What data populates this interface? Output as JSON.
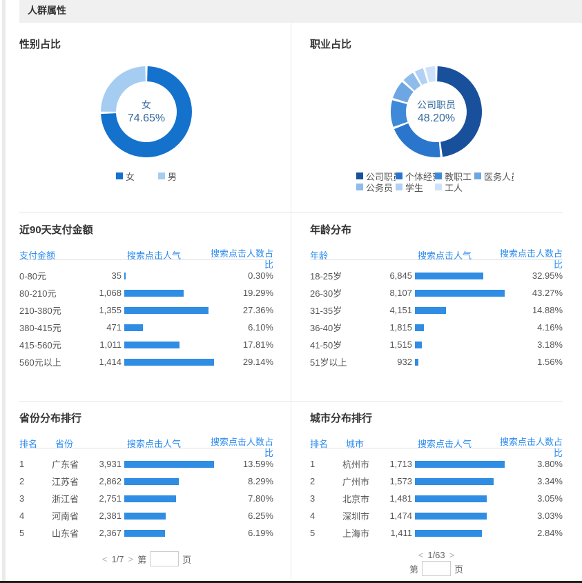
{
  "page": {
    "title": "人群属性"
  },
  "colors": {
    "accent_blue": "#2d8cf0",
    "bar_blue": "#2f8de3",
    "donut_center_text": "#33699f",
    "title_text": "#333333",
    "body_text": "#555555",
    "separator_band": "#f0f0f0",
    "divider": "#e7e7e7",
    "bottom_edge": "#1f1f1f"
  },
  "panels": {
    "gender": {
      "title": "性别占比"
    },
    "occupation": {
      "title": "职业占比"
    },
    "payment": {
      "title": "近90天支付金额"
    },
    "age": {
      "title": "年龄分布"
    },
    "province": {
      "title": "省份分布排行",
      "pagination_current": "1/7"
    },
    "city": {
      "title": "城市分布排行",
      "pagination_current": "1/63"
    }
  },
  "pagination": {
    "prev": "<",
    "next": ">",
    "page_prefix": "第",
    "page_suffix": "页",
    "input_value": ""
  },
  "chart_data": [
    {
      "id": "gender",
      "type": "pie",
      "subtype": "donut",
      "title": "性别占比",
      "labels": [
        "女",
        "男"
      ],
      "values": [
        74.65,
        25.35
      ],
      "unit": "%",
      "colors": [
        "#1472cd",
        "#a5cdf2"
      ],
      "center_label": [
        "女",
        "74.65%"
      ],
      "legend_position": "bottom"
    },
    {
      "id": "occupation",
      "type": "pie",
      "subtype": "donut",
      "title": "职业占比",
      "labels": [
        "公司职员",
        "个体经营",
        "教职工",
        "医务人员",
        "公务员",
        "学生",
        "工人"
      ],
      "values": [
        48.2,
        21.0,
        10.3,
        7.3,
        5.0,
        3.9,
        4.3
      ],
      "unit": "%",
      "colors": [
        "#19509c",
        "#2a76cd",
        "#3f8ad8",
        "#6ea6e3",
        "#8fbceb",
        "#b0d1f3",
        "#cde2f9"
      ],
      "center_label": [
        "公司职员",
        "48.20%"
      ],
      "legend_position": "bottom"
    },
    {
      "id": "payment",
      "type": "table",
      "title": "近90天支付金额",
      "columns": [
        "支付金额",
        "搜索点击人气",
        "搜索点击人数占比"
      ],
      "rows": [
        {
          "label": "0-80元",
          "value": "35",
          "pct": "0.30%",
          "pct_num": 0.3
        },
        {
          "label": "80-210元",
          "value": "1,068",
          "pct": "19.29%",
          "pct_num": 19.29
        },
        {
          "label": "210-380元",
          "value": "1,355",
          "pct": "27.36%",
          "pct_num": 27.36
        },
        {
          "label": "380-415元",
          "value": "471",
          "pct": "6.10%",
          "pct_num": 6.1
        },
        {
          "label": "415-560元",
          "value": "1,011",
          "pct": "17.81%",
          "pct_num": 17.81
        },
        {
          "label": "560元以上",
          "value": "1,414",
          "pct": "29.14%",
          "pct_num": 29.14
        }
      ]
    },
    {
      "id": "age",
      "type": "table",
      "title": "年龄分布",
      "columns": [
        "年龄",
        "搜索点击人气",
        "搜索点击人数占比"
      ],
      "rows": [
        {
          "label": "18-25岁",
          "value": "6,845",
          "pct": "32.95%",
          "pct_num": 32.95
        },
        {
          "label": "26-30岁",
          "value": "8,107",
          "pct": "43.27%",
          "pct_num": 43.27
        },
        {
          "label": "31-35岁",
          "value": "4,151",
          "pct": "14.88%",
          "pct_num": 14.88
        },
        {
          "label": "36-40岁",
          "value": "1,815",
          "pct": "4.16%",
          "pct_num": 4.16
        },
        {
          "label": "41-50岁",
          "value": "1,515",
          "pct": "3.18%",
          "pct_num": 3.18
        },
        {
          "label": "51岁以上",
          "value": "932",
          "pct": "1.56%",
          "pct_num": 1.56
        }
      ]
    },
    {
      "id": "province",
      "type": "table",
      "title": "省份分布排行",
      "columns": [
        "排名",
        "省份",
        "搜索点击人气",
        "搜索点击人数占比"
      ],
      "rows": [
        {
          "rank": "1",
          "label": "广东省",
          "value": "3,931",
          "pct": "13.59%",
          "pct_num": 13.59
        },
        {
          "rank": "2",
          "label": "江苏省",
          "value": "2,862",
          "pct": "8.29%",
          "pct_num": 8.29
        },
        {
          "rank": "3",
          "label": "浙江省",
          "value": "2,751",
          "pct": "7.80%",
          "pct_num": 7.8
        },
        {
          "rank": "4",
          "label": "河南省",
          "value": "2,381",
          "pct": "6.25%",
          "pct_num": 6.25
        },
        {
          "rank": "5",
          "label": "山东省",
          "value": "2,367",
          "pct": "6.19%",
          "pct_num": 6.19
        }
      ]
    },
    {
      "id": "city",
      "type": "table",
      "title": "城市分布排行",
      "columns": [
        "排名",
        "城市",
        "搜索点击人气",
        "搜索点击人数占比"
      ],
      "rows": [
        {
          "rank": "1",
          "label": "杭州市",
          "value": "1,713",
          "pct": "3.80%",
          "pct_num": 3.8
        },
        {
          "rank": "2",
          "label": "广州市",
          "value": "1,573",
          "pct": "3.34%",
          "pct_num": 3.34
        },
        {
          "rank": "3",
          "label": "北京市",
          "value": "1,481",
          "pct": "3.05%",
          "pct_num": 3.05
        },
        {
          "rank": "4",
          "label": "深圳市",
          "value": "1,474",
          "pct": "3.03%",
          "pct_num": 3.03
        },
        {
          "rank": "5",
          "label": "上海市",
          "value": "1,411",
          "pct": "2.84%",
          "pct_num": 2.84
        }
      ]
    }
  ]
}
